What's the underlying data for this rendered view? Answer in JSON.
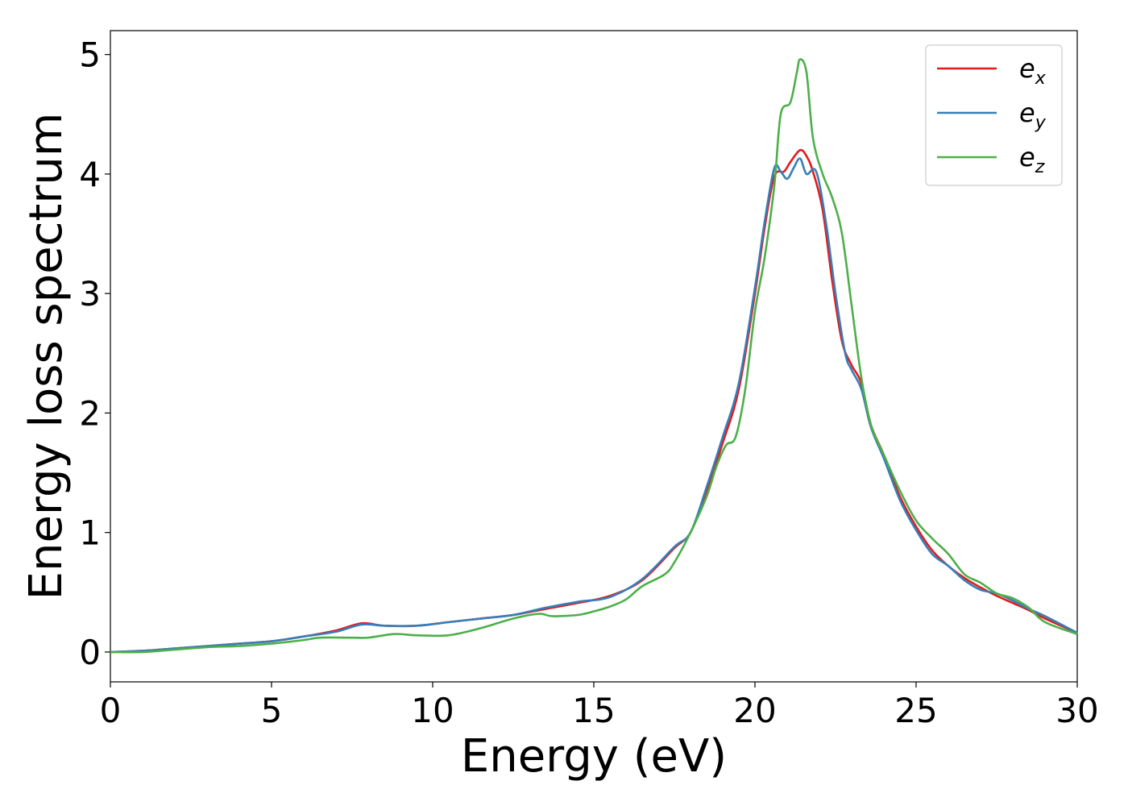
{
  "chart_data": {
    "type": "line",
    "title": "",
    "xlabel": "Energy (eV)",
    "ylabel": "Energy loss spectrum",
    "xlim": [
      0,
      30
    ],
    "ylim": [
      -0.25,
      5.2
    ],
    "xticks": [
      0,
      5,
      10,
      15,
      20,
      25,
      30
    ],
    "yticks": [
      0,
      1,
      2,
      3,
      4,
      5
    ],
    "grid": false,
    "legend": "top-right",
    "legend_entries": [
      {
        "base": "e",
        "sub": "x"
      },
      {
        "base": "e",
        "sub": "y"
      },
      {
        "base": "e",
        "sub": "z"
      }
    ],
    "series": [
      {
        "id": "ex",
        "color": "#e41a1c",
        "points": [
          [
            0,
            0
          ],
          [
            1,
            0.01
          ],
          [
            2,
            0.03
          ],
          [
            3,
            0.05
          ],
          [
            4,
            0.07
          ],
          [
            5,
            0.09
          ],
          [
            6,
            0.13
          ],
          [
            7,
            0.18
          ],
          [
            7.8,
            0.24
          ],
          [
            8.5,
            0.22
          ],
          [
            9.5,
            0.22
          ],
          [
            10.5,
            0.25
          ],
          [
            11.5,
            0.28
          ],
          [
            12.5,
            0.31
          ],
          [
            13.5,
            0.36
          ],
          [
            14.5,
            0.41
          ],
          [
            15.5,
            0.47
          ],
          [
            16.5,
            0.6
          ],
          [
            17.5,
            0.87
          ],
          [
            18,
            1.0
          ],
          [
            18.5,
            1.35
          ],
          [
            19,
            1.75
          ],
          [
            19.5,
            2.2
          ],
          [
            20,
            3.0
          ],
          [
            20.3,
            3.55
          ],
          [
            20.6,
            3.98
          ],
          [
            20.9,
            4.02
          ],
          [
            21.1,
            4.1
          ],
          [
            21.4,
            4.2
          ],
          [
            21.6,
            4.15
          ],
          [
            21.8,
            4.02
          ],
          [
            22.1,
            3.7
          ],
          [
            22.4,
            3.1
          ],
          [
            22.7,
            2.6
          ],
          [
            23,
            2.4
          ],
          [
            23.3,
            2.25
          ],
          [
            23.6,
            1.9
          ],
          [
            24,
            1.65
          ],
          [
            24.5,
            1.3
          ],
          [
            25,
            1.05
          ],
          [
            25.5,
            0.85
          ],
          [
            26,
            0.72
          ],
          [
            26.5,
            0.62
          ],
          [
            27,
            0.54
          ],
          [
            27.5,
            0.47
          ],
          [
            28,
            0.41
          ],
          [
            28.5,
            0.35
          ],
          [
            29,
            0.28
          ],
          [
            30,
            0.16
          ]
        ]
      },
      {
        "id": "ey",
        "color": "#377eb8",
        "points": [
          [
            0,
            0
          ],
          [
            1,
            0.01
          ],
          [
            2,
            0.03
          ],
          [
            3,
            0.05
          ],
          [
            4,
            0.07
          ],
          [
            5,
            0.09
          ],
          [
            6,
            0.13
          ],
          [
            7,
            0.17
          ],
          [
            7.8,
            0.23
          ],
          [
            8.5,
            0.22
          ],
          [
            9.5,
            0.22
          ],
          [
            10.5,
            0.25
          ],
          [
            11.5,
            0.28
          ],
          [
            12.5,
            0.31
          ],
          [
            13.5,
            0.37
          ],
          [
            14.5,
            0.42
          ],
          [
            15.5,
            0.46
          ],
          [
            16.5,
            0.61
          ],
          [
            17.5,
            0.88
          ],
          [
            18,
            1.0
          ],
          [
            18.5,
            1.38
          ],
          [
            19,
            1.8
          ],
          [
            19.5,
            2.25
          ],
          [
            20,
            3.05
          ],
          [
            20.3,
            3.6
          ],
          [
            20.6,
            4.05
          ],
          [
            20.8,
            4.02
          ],
          [
            21.0,
            3.96
          ],
          [
            21.2,
            4.05
          ],
          [
            21.4,
            4.13
          ],
          [
            21.6,
            4.0
          ],
          [
            21.9,
            4.02
          ],
          [
            22.2,
            3.6
          ],
          [
            22.5,
            3.0
          ],
          [
            22.8,
            2.5
          ],
          [
            23,
            2.36
          ],
          [
            23.3,
            2.2
          ],
          [
            23.6,
            1.88
          ],
          [
            24,
            1.62
          ],
          [
            24.5,
            1.27
          ],
          [
            25,
            1.02
          ],
          [
            25.5,
            0.82
          ],
          [
            26,
            0.72
          ],
          [
            26.5,
            0.6
          ],
          [
            27,
            0.52
          ],
          [
            27.5,
            0.49
          ],
          [
            28,
            0.43
          ],
          [
            28.5,
            0.36
          ],
          [
            29,
            0.3
          ],
          [
            30,
            0.16
          ]
        ]
      },
      {
        "id": "ez",
        "color": "#4daf4a",
        "points": [
          [
            0,
            0
          ],
          [
            1,
            0.0
          ],
          [
            2,
            0.02
          ],
          [
            3,
            0.04
          ],
          [
            4,
            0.05
          ],
          [
            5,
            0.07
          ],
          [
            6,
            0.1
          ],
          [
            6.5,
            0.12
          ],
          [
            7.5,
            0.12
          ],
          [
            8,
            0.12
          ],
          [
            8.8,
            0.15
          ],
          [
            9.5,
            0.14
          ],
          [
            10.5,
            0.14
          ],
          [
            11.5,
            0.2
          ],
          [
            12.5,
            0.28
          ],
          [
            13.3,
            0.32
          ],
          [
            13.7,
            0.3
          ],
          [
            14.5,
            0.31
          ],
          [
            15,
            0.34
          ],
          [
            15.5,
            0.38
          ],
          [
            16,
            0.44
          ],
          [
            16.5,
            0.55
          ],
          [
            17.2,
            0.65
          ],
          [
            17.5,
            0.75
          ],
          [
            18,
            1.0
          ],
          [
            18.5,
            1.3
          ],
          [
            18.8,
            1.55
          ],
          [
            19.1,
            1.73
          ],
          [
            19.4,
            1.8
          ],
          [
            19.7,
            2.2
          ],
          [
            20,
            2.85
          ],
          [
            20.3,
            3.3
          ],
          [
            20.6,
            3.9
          ],
          [
            20.8,
            4.5
          ],
          [
            21.1,
            4.6
          ],
          [
            21.3,
            4.85
          ],
          [
            21.4,
            4.96
          ],
          [
            21.6,
            4.85
          ],
          [
            21.8,
            4.3
          ],
          [
            22.1,
            4.0
          ],
          [
            22.4,
            3.8
          ],
          [
            22.7,
            3.5
          ],
          [
            23,
            2.9
          ],
          [
            23.3,
            2.3
          ],
          [
            23.6,
            1.9
          ],
          [
            24,
            1.65
          ],
          [
            24.5,
            1.35
          ],
          [
            25,
            1.1
          ],
          [
            25.5,
            0.95
          ],
          [
            26,
            0.82
          ],
          [
            26.5,
            0.65
          ],
          [
            27,
            0.58
          ],
          [
            27.5,
            0.49
          ],
          [
            28,
            0.45
          ],
          [
            28.5,
            0.37
          ],
          [
            29,
            0.25
          ],
          [
            30,
            0.15
          ]
        ]
      }
    ]
  }
}
